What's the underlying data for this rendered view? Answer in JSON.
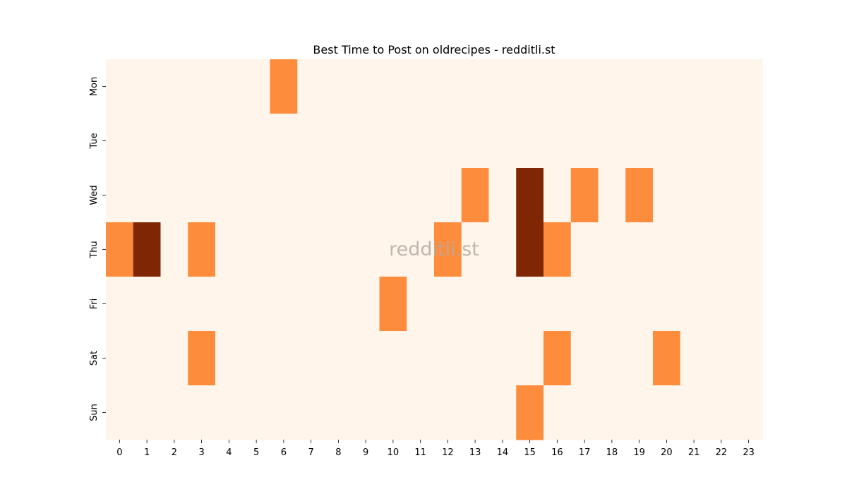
{
  "chart_data": {
    "type": "heatmap",
    "title": "Best Time to Post on oldrecipes - redditli.st",
    "watermark": "redditli.st",
    "xlabel": "",
    "ylabel": "",
    "x": [
      "0",
      "1",
      "2",
      "3",
      "4",
      "5",
      "6",
      "7",
      "8",
      "9",
      "10",
      "11",
      "12",
      "13",
      "14",
      "15",
      "16",
      "17",
      "18",
      "19",
      "20",
      "21",
      "22",
      "23"
    ],
    "y": [
      "Mon",
      "Tue",
      "Wed",
      "Thu",
      "Fri",
      "Sat",
      "Sun"
    ],
    "values": [
      [
        0,
        0,
        0,
        0,
        0,
        0,
        1,
        0,
        0,
        0,
        0,
        0,
        0,
        0,
        0,
        0,
        0,
        0,
        0,
        0,
        0,
        0,
        0,
        0
      ],
      [
        0,
        0,
        0,
        0,
        0,
        0,
        0,
        0,
        0,
        0,
        0,
        0,
        0,
        0,
        0,
        0,
        0,
        0,
        0,
        0,
        0,
        0,
        0,
        0
      ],
      [
        0,
        0,
        0,
        0,
        0,
        0,
        0,
        0,
        0,
        0,
        0,
        0,
        0,
        1,
        0,
        2,
        0,
        1,
        0,
        1,
        0,
        0,
        0,
        0
      ],
      [
        1,
        2,
        0,
        1,
        0,
        0,
        0,
        0,
        0,
        0,
        0,
        0,
        1,
        0,
        0,
        2,
        1,
        0,
        0,
        0,
        0,
        0,
        0,
        0
      ],
      [
        0,
        0,
        0,
        0,
        0,
        0,
        0,
        0,
        0,
        0,
        1,
        0,
        0,
        0,
        0,
        0,
        0,
        0,
        0,
        0,
        0,
        0,
        0,
        0
      ],
      [
        0,
        0,
        0,
        1,
        0,
        0,
        0,
        0,
        0,
        0,
        0,
        0,
        0,
        0,
        0,
        0,
        1,
        0,
        0,
        0,
        1,
        0,
        0,
        0
      ],
      [
        0,
        0,
        0,
        0,
        0,
        0,
        0,
        0,
        0,
        0,
        0,
        0,
        0,
        0,
        0,
        1,
        0,
        0,
        0,
        0,
        0,
        0,
        0,
        0
      ]
    ],
    "colorscale": [
      "#fff5eb",
      "#fd8d3c",
      "#7f2704"
    ],
    "colorbar": false
  }
}
